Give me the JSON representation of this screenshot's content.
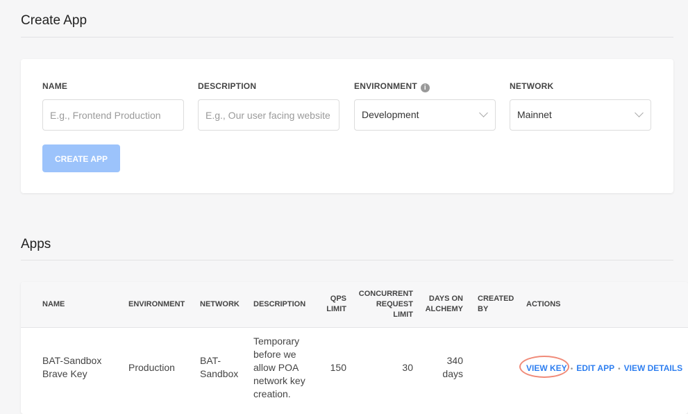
{
  "create": {
    "title": "Create App",
    "fields": {
      "name": {
        "label": "NAME",
        "placeholder": "E.g., Frontend Production",
        "value": ""
      },
      "description": {
        "label": "DESCRIPTION",
        "placeholder": "E.g., Our user facing website",
        "value": ""
      },
      "environment": {
        "label": "ENVIRONMENT",
        "info_icon": "i",
        "value": "Development"
      },
      "network": {
        "label": "NETWORK",
        "value": "Mainnet"
      }
    },
    "button": "CREATE APP",
    "button_color": "#9cc3fb"
  },
  "apps": {
    "title": "Apps",
    "columns": {
      "name": "NAME",
      "environment": "ENVIRONMENT",
      "network": "NETWORK",
      "description": "DESCRIPTION",
      "qps": [
        "QPS",
        "LIMIT"
      ],
      "concurrent": [
        "CONCURRENT",
        "REQUEST",
        "LIMIT"
      ],
      "days": [
        "DAYS ON",
        "ALCHEMY"
      ],
      "created": [
        "CREATED",
        "BY"
      ],
      "actions": "ACTIONS"
    },
    "rows": [
      {
        "name": [
          "BAT-Sandbox",
          "Brave Key"
        ],
        "environment": "Production",
        "network": [
          "BAT-",
          "Sandbox"
        ],
        "description": [
          "Temporary",
          "before we",
          "allow POA",
          "network key",
          "creation."
        ],
        "qps": "150",
        "concurrent": "30",
        "days": [
          "340",
          "days"
        ],
        "created_by": "",
        "actions": [
          "VIEW KEY",
          "EDIT APP",
          "VIEW DETAILS"
        ]
      }
    ],
    "action_color": "#2f7ff0",
    "highlight_color": "#f08a78"
  }
}
